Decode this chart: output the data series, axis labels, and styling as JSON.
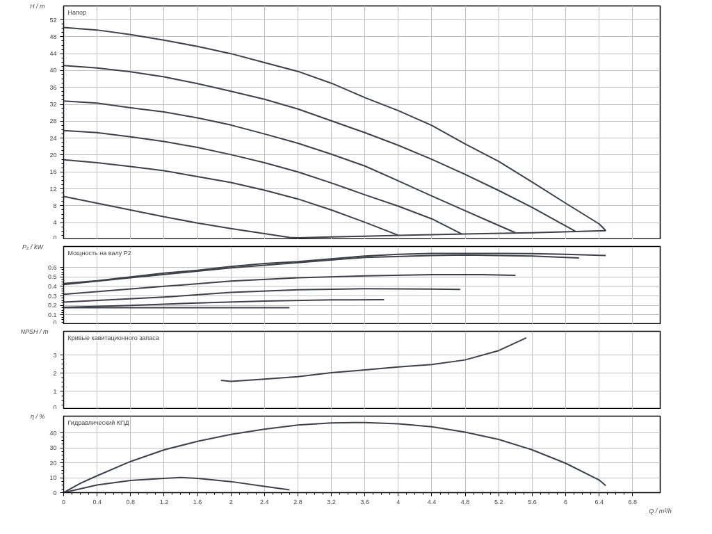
{
  "chart_data": [
    {
      "type": "line",
      "title": "Напор",
      "ylabel": "H / m",
      "xlim": [
        0,
        7.13
      ],
      "ylim": [
        0,
        55.3
      ],
      "xticks": [
        0,
        0.4,
        0.8,
        1.2,
        1.6,
        2,
        2.4,
        2.8,
        3.2,
        3.6,
        4,
        4.4,
        4.8,
        5.2,
        5.6,
        6,
        6.4,
        6.8
      ],
      "yticks": [
        0,
        4,
        8,
        12,
        16,
        20,
        24,
        28,
        32,
        36,
        40,
        44,
        48,
        52
      ],
      "grid": true,
      "tick_labels": "y",
      "series": [
        {
          "color": "#3c4048",
          "x": [
            0,
            0.4,
            0.8,
            1.2,
            1.6,
            2,
            2.4,
            2.8,
            3.2,
            3.6,
            4,
            4.4,
            4.8,
            5.2,
            5.6,
            6,
            6.4,
            6.48
          ],
          "values": [
            50.2,
            49.6,
            48.5,
            47.2,
            45.7,
            44.0,
            41.9,
            39.8,
            37.0,
            33.6,
            30.5,
            27.0,
            22.6,
            18.5,
            13.6,
            8.6,
            3.7,
            2.1
          ]
        },
        {
          "color": "#3c4048",
          "x": [
            0,
            0.4,
            0.8,
            1.2,
            1.6,
            2,
            2.4,
            2.8,
            3.2,
            3.6,
            4,
            4.4,
            4.8,
            5.2,
            5.6,
            6.12
          ],
          "values": [
            41.2,
            40.6,
            39.7,
            38.5,
            36.9,
            35.1,
            33.2,
            30.9,
            28.1,
            25.3,
            22.3,
            19.0,
            15.4,
            11.6,
            7.6,
            1.9
          ]
        },
        {
          "color": "#3c4048",
          "x": [
            0,
            0.4,
            0.8,
            1.2,
            1.6,
            2,
            2.4,
            2.8,
            3.2,
            3.6,
            4,
            4.4,
            4.8,
            5.1,
            5.4
          ],
          "values": [
            32.8,
            32.3,
            31.2,
            30.2,
            28.8,
            27.1,
            25.0,
            22.8,
            20.2,
            17.4,
            13.9,
            10.3,
            6.8,
            4.2,
            1.6
          ]
        },
        {
          "color": "#3c4048",
          "x": [
            0,
            0.4,
            0.8,
            1.2,
            1.6,
            2,
            2.4,
            2.8,
            3.2,
            3.6,
            4,
            4.4,
            4.76
          ],
          "values": [
            25.8,
            25.3,
            24.3,
            23.2,
            21.8,
            20.1,
            18.2,
            16.0,
            13.4,
            10.6,
            7.9,
            4.9,
            1.3
          ]
        },
        {
          "color": "#3c4048",
          "x": [
            0,
            0.4,
            0.8,
            1.2,
            1.6,
            2,
            2.4,
            2.8,
            3.2,
            3.6,
            4
          ],
          "values": [
            18.9,
            18.2,
            17.3,
            16.3,
            14.9,
            13.5,
            11.7,
            9.6,
            7.0,
            4.1,
            1.0
          ]
        },
        {
          "color": "#3c4048",
          "x": [
            0,
            0.4,
            0.8,
            1.2,
            1.6,
            2,
            2.4,
            2.7,
            2.8,
            3.2,
            3.6,
            4,
            4.8,
            5.6,
            6.48
          ],
          "values": [
            10.2,
            8.6,
            7.0,
            5.4,
            3.9,
            2.6,
            1.4,
            0.5,
            0.4,
            0.6,
            0.8,
            1.0,
            1.3,
            1.6,
            2.1
          ]
        }
      ]
    },
    {
      "type": "line",
      "title": "Мощность на валу P2",
      "ylabel": "P₂ / kW",
      "xlim": [
        0,
        7.13
      ],
      "ylim": [
        0,
        0.82
      ],
      "xticks": [
        0,
        0.4,
        0.8,
        1.2,
        1.6,
        2,
        2.4,
        2.8,
        3.2,
        3.6,
        4,
        4.4,
        4.8,
        5.2,
        5.6,
        6,
        6.4,
        6.8
      ],
      "yticks": [
        0,
        0.1,
        0.2,
        0.3,
        0.4,
        0.5,
        0.6
      ],
      "grid": true,
      "tick_labels": "y",
      "series": [
        {
          "color": "#3c4048",
          "x": [
            0,
            0.4,
            0.8,
            1.2,
            1.6,
            2,
            2.4,
            2.8,
            3.2,
            3.6,
            4,
            4.4,
            4.8,
            5.2,
            5.6,
            6,
            6.48
          ],
          "values": [
            0.43,
            0.46,
            0.5,
            0.54,
            0.57,
            0.61,
            0.64,
            0.66,
            0.69,
            0.72,
            0.737,
            0.747,
            0.747,
            0.747,
            0.745,
            0.737,
            0.725
          ]
        },
        {
          "color": "#3c4048",
          "x": [
            0,
            0.8,
            1.6,
            2,
            2.8,
            3.6,
            4.4,
            4.8,
            5.6,
            6.16
          ],
          "values": [
            0.42,
            0.49,
            0.56,
            0.595,
            0.65,
            0.705,
            0.725,
            0.73,
            0.72,
            0.7
          ]
        },
        {
          "color": "#3c4048",
          "x": [
            0,
            1.2,
            2,
            2.8,
            3.6,
            4.4,
            5,
            5.4
          ],
          "values": [
            0.316,
            0.4,
            0.456,
            0.49,
            0.51,
            0.524,
            0.524,
            0.517
          ]
        },
        {
          "color": "#3c4048",
          "x": [
            0,
            1.2,
            2,
            2.8,
            3.6,
            4.4,
            4.74
          ],
          "values": [
            0.235,
            0.287,
            0.336,
            0.365,
            0.375,
            0.372,
            0.367
          ]
        },
        {
          "color": "#3c4048",
          "x": [
            0,
            0.8,
            1.6,
            2.4,
            3.2,
            3.83
          ],
          "values": [
            0.18,
            0.2,
            0.225,
            0.245,
            0.258,
            0.26
          ]
        },
        {
          "color": "#3c4048",
          "x": [
            0,
            2.7
          ],
          "values": [
            0.175,
            0.175
          ]
        }
      ]
    },
    {
      "type": "line",
      "title": "Кривые кавитационного запаса",
      "ylabel": "NPSH / m",
      "xlim": [
        0,
        7.13
      ],
      "ylim": [
        0,
        4.33
      ],
      "xticks": [
        0,
        0.4,
        0.8,
        1.2,
        1.6,
        2,
        2.4,
        2.8,
        3.2,
        3.6,
        4,
        4.4,
        4.8,
        5.2,
        5.6,
        6,
        6.4,
        6.8
      ],
      "yticks": [
        0,
        1,
        2,
        3
      ],
      "grid": true,
      "tick_labels": "y",
      "series": [
        {
          "color": "#3c4048",
          "x": [
            1.88,
            2,
            2.4,
            2.8,
            3.2,
            3.6,
            4,
            4.4,
            4.8,
            5.2,
            5.53
          ],
          "values": [
            1.6,
            1.55,
            1.67,
            1.81,
            2.03,
            2.18,
            2.35,
            2.48,
            2.74,
            3.26,
            3.97
          ]
        }
      ]
    },
    {
      "type": "line",
      "title": "Гидравлический КПД",
      "ylabel": "η / %",
      "xlabel": "Q / m³/h",
      "xlim": [
        0,
        7.13
      ],
      "ylim": [
        0,
        51.3
      ],
      "xticks": [
        0,
        0.4,
        0.8,
        1.2,
        1.6,
        2,
        2.4,
        2.8,
        3.2,
        3.6,
        4,
        4.4,
        4.8,
        5.2,
        5.6,
        6,
        6.4,
        6.8
      ],
      "yticks": [
        0,
        10,
        20,
        30,
        40
      ],
      "grid": true,
      "series": [
        {
          "color": "#3c4048",
          "x": [
            0,
            0.2,
            0.4,
            0.8,
            1.2,
            1.6,
            2,
            2.4,
            2.8,
            3.2,
            3.6,
            4,
            4.4,
            4.8,
            5.2,
            5.6,
            6,
            6.4,
            6.48
          ],
          "values": [
            0,
            6.2,
            11.3,
            20.9,
            28.7,
            34.4,
            39.1,
            42.6,
            45.3,
            46.8,
            47,
            46.2,
            44.2,
            40.6,
            35.7,
            28.7,
            19.7,
            8.5,
            4.7
          ]
        },
        {
          "color": "#3c4048",
          "x": [
            0,
            0.4,
            0.8,
            1.2,
            1.4,
            1.6,
            2,
            2.4,
            2.7
          ],
          "values": [
            0,
            5.1,
            8.2,
            9.6,
            10.1,
            9.6,
            7.4,
            4.2,
            1.9
          ]
        }
      ]
    }
  ]
}
